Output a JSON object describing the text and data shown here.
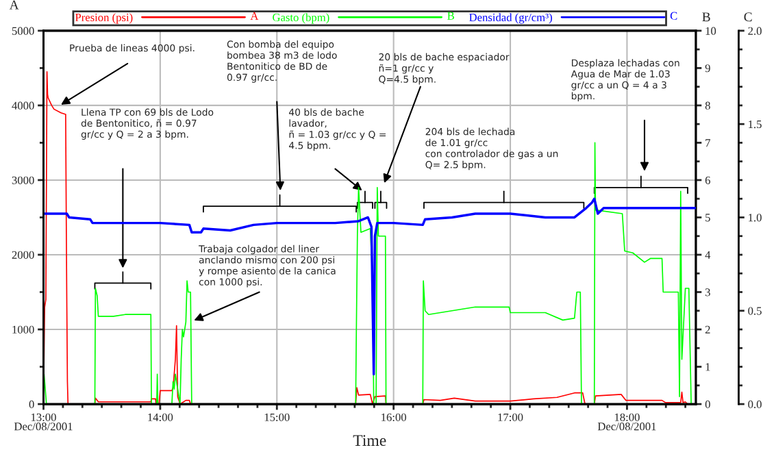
{
  "chart_data": {
    "type": "line",
    "xlabel": "Time",
    "ylabel": "A",
    "y2label": "B",
    "y3label": "C",
    "xlim": [
      13,
      18.59
    ],
    "xticks": [
      {
        "value": 13,
        "label": "13:00\nDec/08/2001"
      },
      {
        "value": 13.1667,
        "label": null
      },
      {
        "value": 13.3333,
        "label": null
      },
      {
        "value": 13.5,
        "label": null
      },
      {
        "value": 13.6667,
        "label": null
      },
      {
        "value": 13.8333,
        "label": null
      },
      {
        "value": 14,
        "label": "14:00"
      },
      {
        "value": 14.1667,
        "label": null
      },
      {
        "value": 14.3333,
        "label": null
      },
      {
        "value": 14.5,
        "label": null
      },
      {
        "value": 14.6667,
        "label": null
      },
      {
        "value": 14.8333,
        "label": null
      },
      {
        "value": 15,
        "label": "15:00"
      },
      {
        "value": 15.1667,
        "label": null
      },
      {
        "value": 15.3333,
        "label": null
      },
      {
        "value": 15.5,
        "label": null
      },
      {
        "value": 15.6667,
        "label": null
      },
      {
        "value": 15.8333,
        "label": null
      },
      {
        "value": 16,
        "label": "16:00"
      },
      {
        "value": 16.1667,
        "label": null
      },
      {
        "value": 16.3333,
        "label": null
      },
      {
        "value": 16.5,
        "label": null
      },
      {
        "value": 16.6667,
        "label": null
      },
      {
        "value": 16.8333,
        "label": null
      },
      {
        "value": 17,
        "label": "17:00"
      },
      {
        "value": 17.1667,
        "label": null
      },
      {
        "value": 17.3333,
        "label": null
      },
      {
        "value": 17.5,
        "label": null
      },
      {
        "value": 17.6667,
        "label": null
      },
      {
        "value": 17.8333,
        "label": null
      },
      {
        "value": 18,
        "label": "18:00\nDec/08/2001"
      },
      {
        "value": 18.1667,
        "label": null
      },
      {
        "value": 18.3333,
        "label": null
      },
      {
        "value": 18.5,
        "label": null
      }
    ],
    "ylim": [
      0,
      5000
    ],
    "yticks": [
      0,
      {
        "value": 500,
        "label": null
      },
      1000,
      {
        "value": 1500,
        "label": null
      },
      2000,
      {
        "value": 2500,
        "label": null
      },
      3000,
      {
        "value": 3500,
        "label": null
      },
      4000,
      {
        "value": 4500,
        "label": null
      },
      5000
    ],
    "y2lim": [
      0,
      10
    ],
    "y2ticks": [
      0,
      {
        "value": 0.5,
        "label": null
      },
      1,
      {
        "value": 1.5,
        "label": null
      },
      2,
      {
        "value": 2.5,
        "label": null
      },
      3,
      {
        "value": 3.5,
        "label": null
      },
      4,
      {
        "value": 4.5,
        "label": null
      },
      5,
      {
        "value": 5.5,
        "label": null
      },
      6,
      {
        "value": 6.5,
        "label": null
      },
      7,
      {
        "value": 7.5,
        "label": null
      },
      8,
      {
        "value": 8.5,
        "label": null
      },
      9,
      {
        "value": 9.5,
        "label": null
      },
      10
    ],
    "y3lim": [
      0,
      2.0
    ],
    "y3ticks": [
      {
        "value": 0,
        "label": "0.0"
      },
      {
        "value": 0.1,
        "label": null
      },
      {
        "value": 0.2,
        "label": null
      },
      {
        "value": 0.3,
        "label": null
      },
      {
        "value": 0.4,
        "label": null
      },
      0.5,
      {
        "value": 0.6,
        "label": null
      },
      {
        "value": 0.7,
        "label": null
      },
      {
        "value": 0.8,
        "label": null
      },
      {
        "value": 0.9,
        "label": null
      },
      {
        "value": 1,
        "label": "1.0"
      },
      {
        "value": 1.1,
        "label": null
      },
      {
        "value": 1.2,
        "label": null
      },
      {
        "value": 1.3,
        "label": null
      },
      {
        "value": 1.4,
        "label": null
      },
      1.5,
      {
        "value": 1.6,
        "label": null
      },
      {
        "value": 1.7,
        "label": null
      },
      {
        "value": 1.8,
        "label": null
      },
      {
        "value": 1.9,
        "label": null
      },
      {
        "value": 2,
        "label": "2.0"
      }
    ],
    "grid": true,
    "legend": "top",
    "line_style": "solid",
    "marker": "none",
    "series": [
      {
        "name": "Presion (psi)",
        "color": "#ff0000",
        "axis": "y",
        "x": [
          13.0,
          13.01,
          13.02,
          13.03,
          13.035,
          13.04,
          13.07,
          13.09,
          13.15,
          13.19,
          13.195,
          13.2,
          13.205,
          13.21,
          13.44,
          13.445,
          13.47,
          13.92,
          13.925,
          13.96,
          13.965,
          13.99,
          14.0,
          14.1,
          14.11,
          14.12,
          14.13,
          14.14,
          14.15,
          14.17,
          14.22,
          14.25,
          14.26,
          15.675,
          15.685,
          15.7,
          15.8,
          15.82,
          15.84,
          15.93,
          15.935,
          16.25,
          16.26,
          16.4,
          16.52,
          16.7,
          17.0,
          17.2,
          17.4,
          17.55,
          17.62,
          17.64,
          17.72,
          17.73,
          17.95,
          17.99,
          18.3,
          18.33,
          18.46,
          18.47,
          18.48,
          18.5,
          18.52
        ],
        "values": [
          0,
          1300,
          1400,
          4450,
          4150,
          4100,
          4000,
          3950,
          3900,
          3880,
          2500,
          1300,
          300,
          0,
          0,
          80,
          30,
          30,
          70,
          70,
          0,
          0,
          180,
          180,
          220,
          400,
          600,
          1050,
          100,
          0,
          50,
          50,
          0,
          0,
          220,
          120,
          130,
          0,
          100,
          110,
          0,
          0,
          60,
          50,
          80,
          40,
          40,
          70,
          90,
          150,
          150,
          0,
          0,
          110,
          130,
          50,
          50,
          20,
          20,
          160,
          20,
          30,
          0
        ]
      },
      {
        "name": "Gasto (bpm)",
        "color": "#00ff00",
        "axis": "y2",
        "x": [
          13.0,
          13.005,
          13.02,
          13.025,
          13.44,
          13.445,
          13.46,
          13.47,
          13.6,
          13.7,
          13.92,
          13.925,
          13.97,
          13.975,
          13.98,
          14.1,
          14.11,
          14.12,
          14.13,
          14.17,
          14.18,
          14.19,
          14.2,
          14.22,
          14.23,
          14.24,
          14.26,
          14.27,
          15.675,
          15.68,
          15.69,
          15.7,
          15.72,
          15.8,
          15.82,
          15.83,
          15.85,
          15.86,
          15.87,
          15.93,
          15.935,
          16.25,
          16.255,
          16.27,
          16.3,
          16.5,
          16.7,
          16.99,
          17.0,
          17.3,
          17.45,
          17.55,
          17.57,
          17.6,
          17.61,
          17.72,
          17.725,
          17.73,
          17.96,
          17.98,
          18.05,
          18.15,
          18.2,
          18.3,
          18.31,
          18.44,
          18.45,
          18.46,
          18.47,
          18.5,
          18.53,
          18.55
        ],
        "values": [
          0.8,
          0.8,
          0.2,
          0,
          0,
          3.1,
          2.9,
          2.35,
          2.35,
          2.4,
          2.4,
          0,
          0,
          0.8,
          0,
          0,
          0.6,
          0.4,
          0.8,
          0,
          1.2,
          2.0,
          1.8,
          2.2,
          3.3,
          3.0,
          3.0,
          0,
          0,
          1.7,
          4.6,
          5.8,
          4.6,
          4.7,
          3.3,
          0,
          0,
          5.8,
          4.5,
          4.5,
          0,
          0,
          3.3,
          2.5,
          2.4,
          2.5,
          2.6,
          2.6,
          2.45,
          2.45,
          2.25,
          2.3,
          3.0,
          3.0,
          0,
          0,
          7.0,
          5.2,
          5.1,
          4.1,
          4.05,
          3.8,
          3.9,
          3.9,
          3.0,
          3.0,
          0.2,
          5.7,
          1.2,
          3.1,
          3.1,
          0
        ]
      },
      {
        "name": "Densidad (gr/cm³)",
        "color": "#0000ff",
        "axis": "y3",
        "x": [
          13.0,
          13.2,
          13.22,
          13.4,
          13.42,
          13.6,
          14.0,
          14.25,
          14.27,
          14.35,
          14.37,
          14.6,
          14.8,
          15.0,
          15.5,
          15.7,
          15.78,
          15.81,
          15.83,
          15.84,
          15.86,
          16.0,
          16.25,
          16.27,
          16.5,
          16.7,
          17.0,
          17.3,
          17.55,
          17.65,
          17.7,
          17.72,
          17.75,
          17.8,
          18.0,
          18.59
        ],
        "values": [
          1.02,
          1.02,
          1.0,
          0.99,
          0.97,
          0.97,
          0.97,
          0.96,
          0.92,
          0.92,
          0.94,
          0.93,
          0.96,
          0.97,
          0.97,
          0.98,
          1.0,
          0.95,
          0.16,
          0.9,
          0.97,
          0.97,
          0.96,
          0.99,
          1.0,
          1.02,
          1.02,
          1.0,
          1.0,
          1.05,
          1.08,
          1.1,
          1.02,
          1.05,
          1.05,
          1.05
        ]
      }
    ],
    "annotations": [
      "Prueba de lineas 4000 psi.",
      "Llena TP con 69 bls de Lodo\nde Bentonitico, ñ = 0.97\ngr/cc y Q = 2 a 3 bpm.",
      "Con bomba del equipo\nbombea 38 m3 de lodo\nBentonitico de BD de\n0.97 gr/cc.",
      "40 bls de bache\nlavador,\nñ = 1.03 gr/cc y Q =\n4.5 bpm.",
      "20 bls de bache espaciador\nñ=1 gr/cc y\nQ=4.5 bpm.",
      "204 bls de lechada\nde 1.01 gr/cc\ncon controlador de gas a un\nQ= 2.5 bpm.",
      "Desplaza lechadas con\nAgua de Mar de 1.03\ngr/cc a un Q = 4 a 3\nbpm.",
      "Trabaja colgador del liner\nanclando mismo con 200 psi\ny rompe asiento de la canica\ncon 1000 psi."
    ]
  }
}
